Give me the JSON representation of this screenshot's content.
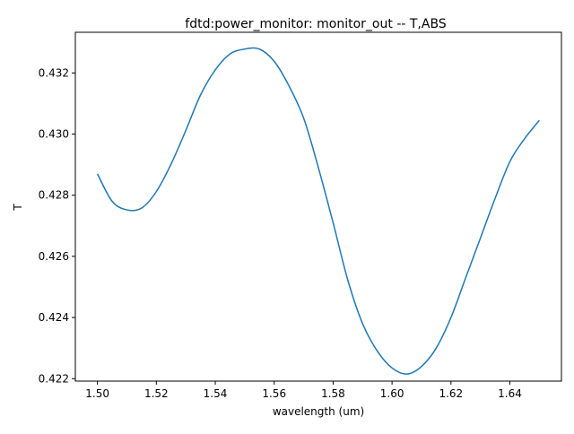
{
  "chart_data": {
    "type": "line",
    "title": "fdtd:power_monitor: monitor_out -- T,ABS",
    "xlabel": "wavelength (um)",
    "ylabel": "T",
    "xlim": [
      1.4925,
      1.6575
    ],
    "ylim": [
      0.42192,
      0.43333
    ],
    "grid": false,
    "xticks": [
      "1.50",
      "1.52",
      "1.54",
      "1.56",
      "1.58",
      "1.60",
      "1.62",
      "1.64"
    ],
    "yticks": [
      "0.422",
      "0.424",
      "0.426",
      "0.428",
      "0.430",
      "0.432"
    ],
    "series": [
      {
        "color": "#1f77b4",
        "x": [
          1.5,
          1.505,
          1.51,
          1.515,
          1.52,
          1.525,
          1.53,
          1.535,
          1.54,
          1.545,
          1.55,
          1.555,
          1.56,
          1.565,
          1.57,
          1.575,
          1.58,
          1.585,
          1.59,
          1.595,
          1.6,
          1.605,
          1.61,
          1.615,
          1.62,
          1.625,
          1.63,
          1.635,
          1.64,
          1.645,
          1.65
        ],
        "y": [
          0.4287,
          0.4278,
          0.42752,
          0.42758,
          0.42812,
          0.42902,
          0.43012,
          0.43128,
          0.4321,
          0.43262,
          0.43278,
          0.43278,
          0.43238,
          0.43158,
          0.43052,
          0.4289,
          0.4271,
          0.42522,
          0.4238,
          0.4229,
          0.42235,
          0.42215,
          0.4224,
          0.423,
          0.424,
          0.4253,
          0.4266,
          0.4279,
          0.4291,
          0.42985,
          0.43045
        ]
      }
    ]
  }
}
